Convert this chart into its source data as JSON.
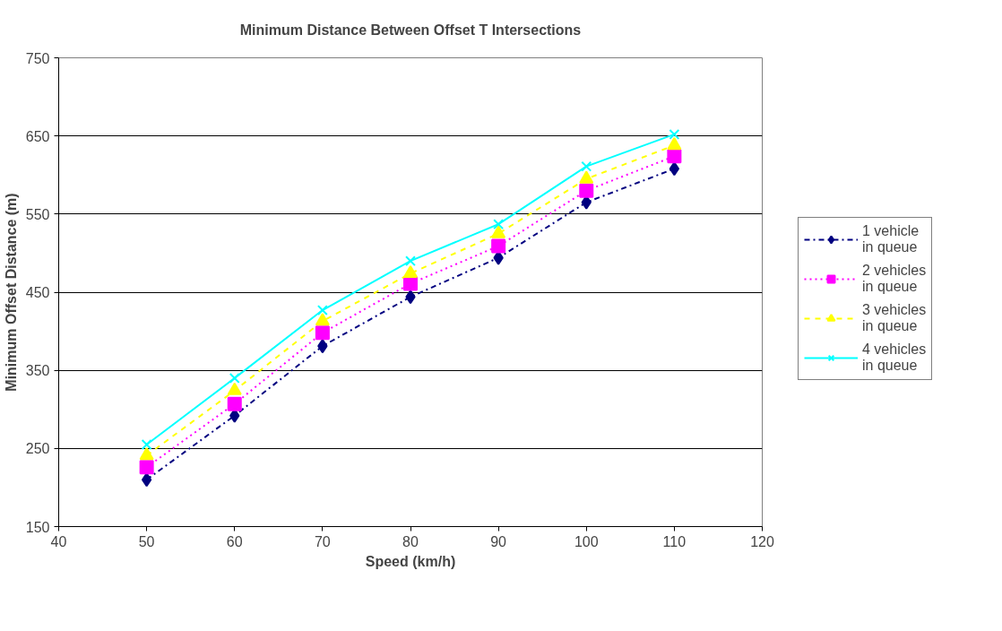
{
  "chart_data": {
    "type": "line",
    "title": "Minimum Distance Between Offset T Intersections",
    "xlabel": "Speed (km/h)",
    "ylabel": "Minimum Offset Distance (m)",
    "x": [
      50,
      60,
      70,
      80,
      90,
      100,
      110
    ],
    "series": [
      {
        "name": "1 vehicle\nin queue",
        "color": "#000080",
        "marker": "diamond",
        "line_style": "dashdot",
        "values": [
          210,
          292,
          381,
          444,
          494,
          565,
          608
        ]
      },
      {
        "name": "2 vehicles\nin queue",
        "color": "#ff00ff",
        "marker": "square",
        "line_style": "dotted",
        "values": [
          226,
          307,
          398,
          461,
          509,
          580,
          624
        ]
      },
      {
        "name": "3 vehicles\nin queue",
        "color": "#ffff00",
        "marker": "triangle",
        "line_style": "dashed",
        "values": [
          241,
          324,
          413,
          474,
          525,
          595,
          638
        ]
      },
      {
        "name": "4 vehicles\nin queue",
        "color": "#00ffff",
        "marker": "cross",
        "line_style": "solid",
        "values": [
          255,
          340,
          427,
          490,
          537,
          611,
          652
        ]
      }
    ],
    "xlim": [
      40,
      120
    ],
    "xticks": [
      40,
      50,
      60,
      70,
      80,
      90,
      100,
      110,
      120
    ],
    "ylim": [
      150,
      750
    ],
    "yticks": [
      150,
      250,
      350,
      450,
      550,
      650,
      750
    ],
    "grid": "y",
    "legend": "right"
  }
}
